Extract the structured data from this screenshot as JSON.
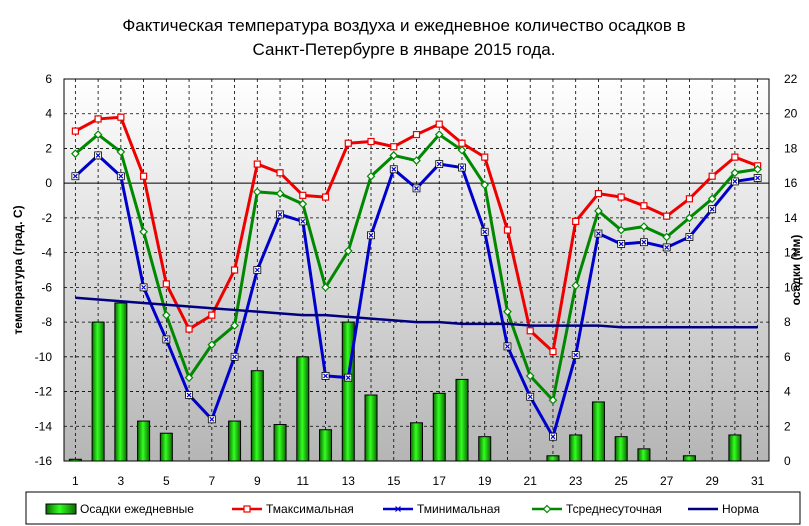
{
  "chart_data": {
    "type": "bar+line",
    "title_line1": "Фактическая температура воздуха и ежедневное количество осадков в",
    "title_line2": "Санкт-Петербурге в январе 2015 года.",
    "ylabel_left": "температура (град. С)",
    "ylabel_right": "осадки (мм)",
    "xlabel": "",
    "xlim": [
      0.5,
      31.5
    ],
    "ylim_left": [
      -16,
      6
    ],
    "ylim_right": [
      0,
      22
    ],
    "grid": true,
    "legend_position": "bottom",
    "x_tick_labels": [
      "1",
      "3",
      "5",
      "7",
      "9",
      "11",
      "13",
      "15",
      "17",
      "19",
      "21",
      "23",
      "25",
      "27",
      "29",
      "31"
    ],
    "y_left_ticks": [
      "6",
      "4",
      "2",
      "0",
      "-2",
      "-4",
      "-6",
      "-8",
      "-10",
      "-12",
      "-14",
      "-16"
    ],
    "y_right_ticks": [
      "22",
      "20",
      "18",
      "16",
      "14",
      "12",
      "10",
      "8",
      "6",
      "4",
      "2",
      "0"
    ],
    "days": [
      1,
      2,
      3,
      4,
      5,
      6,
      7,
      8,
      9,
      10,
      11,
      12,
      13,
      14,
      15,
      16,
      17,
      18,
      19,
      20,
      21,
      22,
      23,
      24,
      25,
      26,
      27,
      28,
      29,
      30,
      31
    ],
    "series": [
      {
        "name": "Осадки ежедневные",
        "kind": "bar",
        "axis": "right",
        "color": "#22cc00",
        "values": [
          0.1,
          8,
          9.1,
          2.3,
          1.6,
          0,
          0,
          2.3,
          5.2,
          2.1,
          6,
          1.8,
          8,
          3.8,
          0,
          2.2,
          3.9,
          4.7,
          1.4,
          0,
          0,
          0.3,
          1.5,
          3.4,
          1.4,
          0.7,
          0,
          0.3,
          0,
          1.5,
          0
        ]
      },
      {
        "name": "Тмаксимальная",
        "kind": "line",
        "axis": "left",
        "color": "#ee0000",
        "values": [
          3,
          3.7,
          3.8,
          0.4,
          -5.8,
          -8.4,
          -7.6,
          -5,
          1.1,
          0.6,
          -0.7,
          -0.8,
          2.3,
          2.4,
          2.1,
          2.8,
          3.4,
          2.3,
          1.5,
          -2.7,
          -8.5,
          -9.7,
          -2.2,
          -0.6,
          -0.8,
          -1.3,
          -1.9,
          -0.9,
          0.4,
          1.5,
          1.0
        ]
      },
      {
        "name": "Тминимальная",
        "kind": "line",
        "axis": "left",
        "color": "#0000cc",
        "values": [
          0.4,
          1.6,
          0.4,
          -6,
          -9,
          -12.2,
          -13.6,
          -10,
          -5,
          -1.8,
          -2.2,
          -11.1,
          -11.2,
          -3,
          0.8,
          -0.3,
          1.1,
          0.9,
          -2.8,
          -9.4,
          -12.3,
          -14.6,
          -9.9,
          -2.9,
          -3.5,
          -3.4,
          -3.7,
          -3.1,
          -1.5,
          0.1,
          0.3
        ]
      },
      {
        "name": "Тсреднесуточная",
        "kind": "line",
        "axis": "left",
        "color": "#008800",
        "values": [
          1.7,
          2.8,
          1.8,
          -2.8,
          -7.6,
          -11.2,
          -9.3,
          -8.2,
          -0.5,
          -0.6,
          -1.2,
          -6,
          -3.9,
          0.4,
          1.6,
          1.3,
          2.8,
          1.9,
          -0.1,
          -7.4,
          -11.1,
          -12.5,
          -5.9,
          -1.6,
          -2.7,
          -2.5,
          -3.1,
          -2.0,
          -0.9,
          0.6,
          0.8
        ]
      },
      {
        "name": "Норма",
        "kind": "line",
        "axis": "left",
        "color": "#000080",
        "values": [
          -6.6,
          -6.7,
          -6.8,
          -6.9,
          -7.0,
          -7.1,
          -7.2,
          -7.3,
          -7.4,
          -7.5,
          -7.6,
          -7.6,
          -7.7,
          -7.8,
          -7.9,
          -8.0,
          -8.0,
          -8.1,
          -8.1,
          -8.1,
          -8.2,
          -8.2,
          -8.2,
          -8.2,
          -8.3,
          -8.3,
          -8.3,
          -8.3,
          -8.3,
          -8.3,
          -8.3
        ]
      }
    ],
    "colors": {
      "plot_bg_top": "#ffffff",
      "plot_bg_bottom": "#b5b5b5",
      "grid": "#000000",
      "zero_line": "#000000"
    }
  }
}
